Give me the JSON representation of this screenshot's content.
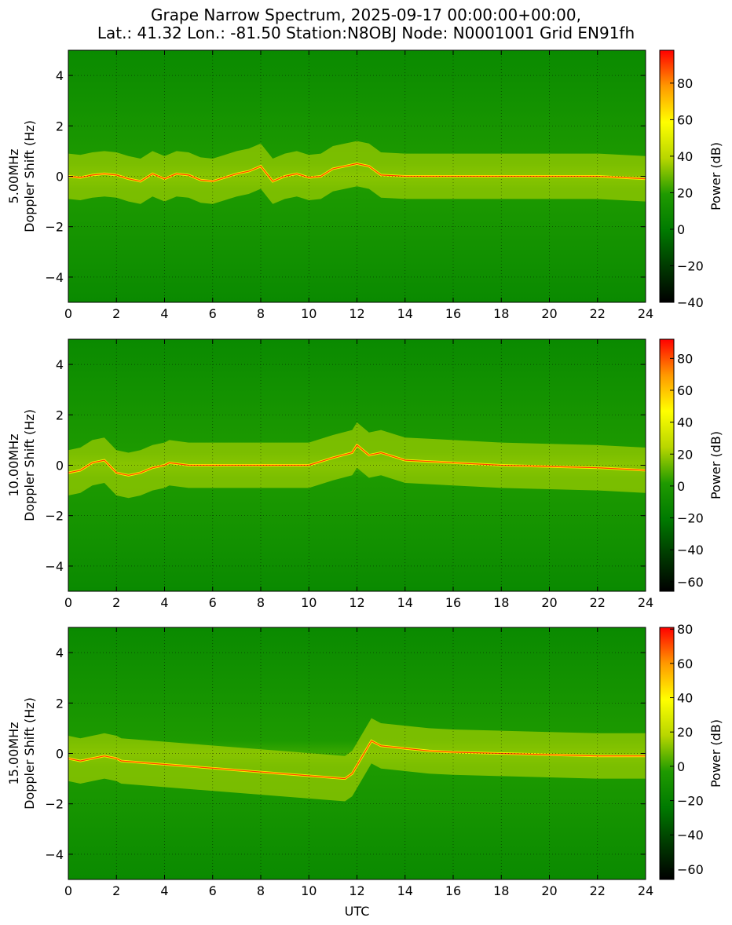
{
  "figure": {
    "title_line1": "Grape Narrow Spectrum, 2025-09-17 00:00:00+00:00,",
    "title_line2": "Lat.: 41.32 Lon.: -81.50 Station:N8OBJ Node: N0001001 Grid EN91fh"
  },
  "colors": {
    "colormap": [
      "#000000",
      "#003a00",
      "#007a00",
      "#1f9a00",
      "#b8d600",
      "#ffff00",
      "#ff9900",
      "#ff0000"
    ],
    "grid": "#000000"
  },
  "chart_data": [
    {
      "type": "heatmap",
      "name": "5.00MHz",
      "ylabel": "5.00MHz\nDoppler Shift (Hz)",
      "xlabel": "",
      "xlim": [
        0,
        24
      ],
      "ylim": [
        -5,
        5
      ],
      "xticks": [
        0,
        2,
        4,
        6,
        8,
        10,
        12,
        14,
        16,
        18,
        20,
        22,
        24
      ],
      "yticks": [
        -4,
        -2,
        0,
        2,
        4
      ],
      "grid": true,
      "colorbar": {
        "label": "Power (dB)",
        "range": [
          -40,
          98
        ],
        "ticks": [
          -40,
          -20,
          0,
          20,
          40,
          60,
          80
        ]
      },
      "trace": [
        [
          0,
          0
        ],
        [
          0.5,
          -0.05
        ],
        [
          1,
          0.05
        ],
        [
          1.5,
          0.1
        ],
        [
          2,
          0.05
        ],
        [
          2.5,
          -0.1
        ],
        [
          3,
          -0.2
        ],
        [
          3.5,
          0.1
        ],
        [
          4,
          -0.1
        ],
        [
          4.5,
          0.1
        ],
        [
          5,
          0.05
        ],
        [
          5.5,
          -0.15
        ],
        [
          6,
          -0.2
        ],
        [
          6.5,
          -0.05
        ],
        [
          7,
          0.1
        ],
        [
          7.5,
          0.2
        ],
        [
          8,
          0.4
        ],
        [
          8.5,
          -0.2
        ],
        [
          9,
          0
        ],
        [
          9.5,
          0.1
        ],
        [
          10,
          -0.05
        ],
        [
          10.5,
          0
        ],
        [
          11,
          0.3
        ],
        [
          11.5,
          0.4
        ],
        [
          12,
          0.5
        ],
        [
          12.5,
          0.4
        ],
        [
          13,
          0.05
        ],
        [
          14,
          0
        ],
        [
          16,
          0
        ],
        [
          18,
          0
        ],
        [
          20,
          0
        ],
        [
          22,
          0
        ],
        [
          24,
          -0.1
        ]
      ]
    },
    {
      "type": "heatmap",
      "name": "10.00MHz",
      "ylabel": "10.00MHz\nDoppler Shift (Hz)",
      "xlabel": "",
      "xlim": [
        0,
        24
      ],
      "ylim": [
        -5,
        5
      ],
      "xticks": [
        0,
        2,
        4,
        6,
        8,
        10,
        12,
        14,
        16,
        18,
        20,
        22,
        24
      ],
      "yticks": [
        -4,
        -2,
        0,
        2,
        4
      ],
      "grid": true,
      "colorbar": {
        "label": "Power (dB)",
        "range": [
          -66,
          92
        ],
        "ticks": [
          -60,
          -40,
          -20,
          0,
          20,
          40,
          60,
          80
        ]
      },
      "trace": [
        [
          0,
          -0.3
        ],
        [
          0.5,
          -0.2
        ],
        [
          1,
          0.1
        ],
        [
          1.5,
          0.2
        ],
        [
          2,
          -0.3
        ],
        [
          2.5,
          -0.4
        ],
        [
          3,
          -0.3
        ],
        [
          3.5,
          -0.1
        ],
        [
          4,
          0
        ],
        [
          4.2,
          0.1
        ],
        [
          5,
          0
        ],
        [
          8,
          0
        ],
        [
          10,
          0
        ],
        [
          11,
          0.3
        ],
        [
          11.8,
          0.5
        ],
        [
          12,
          0.8
        ],
        [
          12.5,
          0.4
        ],
        [
          13,
          0.5
        ],
        [
          14,
          0.2
        ],
        [
          15,
          0.15
        ],
        [
          16,
          0.1
        ],
        [
          18,
          0
        ],
        [
          20,
          -0.05
        ],
        [
          22,
          -0.1
        ],
        [
          24,
          -0.2
        ]
      ]
    },
    {
      "type": "heatmap",
      "name": "15.00MHz",
      "ylabel": "15.00MHz\nDoppler Shift (Hz)",
      "xlabel": "UTC",
      "xlim": [
        0,
        24
      ],
      "ylim": [
        -5,
        5
      ],
      "xticks": [
        0,
        2,
        4,
        6,
        8,
        10,
        12,
        14,
        16,
        18,
        20,
        22,
        24
      ],
      "yticks": [
        -4,
        -2,
        0,
        2,
        4
      ],
      "grid": true,
      "colorbar": {
        "label": "Power (dB)",
        "range": [
          -66,
          81
        ],
        "ticks": [
          -60,
          -40,
          -20,
          0,
          20,
          40,
          60,
          80
        ]
      },
      "trace": [
        [
          0,
          -0.2
        ],
        [
          0.5,
          -0.3
        ],
        [
          1,
          -0.2
        ],
        [
          1.5,
          -0.1
        ],
        [
          2,
          -0.2
        ],
        [
          2.2,
          -0.3
        ],
        [
          11.5,
          -1
        ],
        [
          11.8,
          -0.8
        ],
        [
          12.6,
          0.5
        ],
        [
          13,
          0.3
        ],
        [
          14,
          0.2
        ],
        [
          15,
          0.1
        ],
        [
          16,
          0.05
        ],
        [
          18,
          0
        ],
        [
          20,
          -0.05
        ],
        [
          22,
          -0.1
        ],
        [
          24,
          -0.1
        ]
      ]
    }
  ]
}
